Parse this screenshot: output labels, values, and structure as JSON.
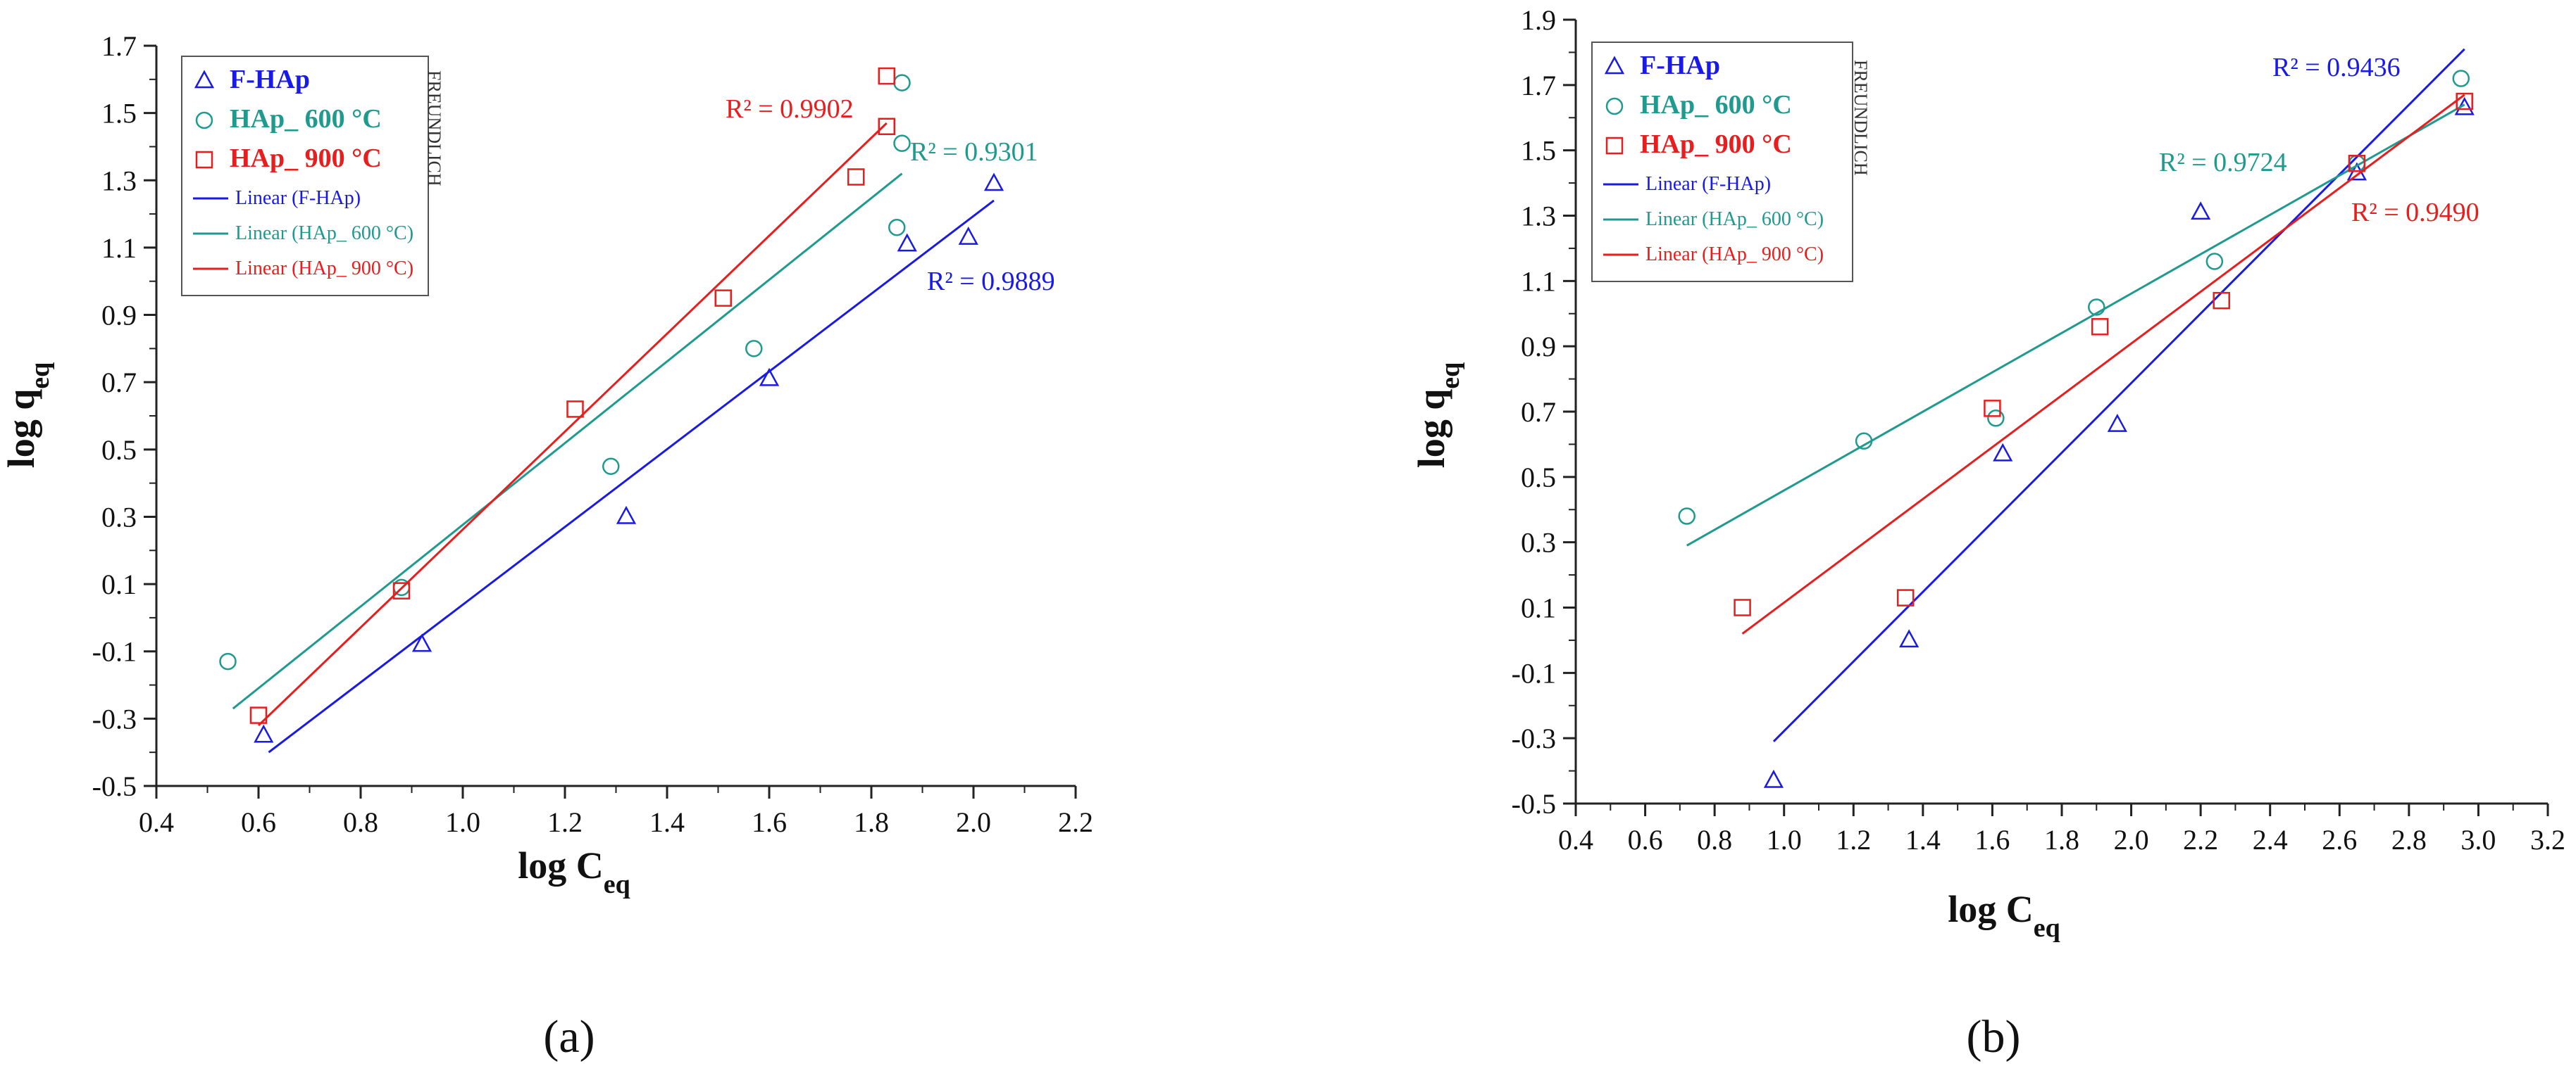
{
  "figure": {
    "panels": [
      "(a)",
      "(b)"
    ],
    "side_note": "FREUNDLICH",
    "colors": {
      "F-HAp": "#1a1ae6",
      "HAp_600": "#1f9a8f",
      "HAp_900": "#e61e1e"
    }
  },
  "chart_data": [
    {
      "panel": "(a)",
      "type": "scatter",
      "title": "",
      "xlabel": "log C",
      "xlabel_sub": "eq",
      "ylabel": "log q",
      "ylabel_sub": "eq",
      "xlim": [
        0.4,
        2.2
      ],
      "ylim": [
        -0.5,
        1.7
      ],
      "xticks": [
        "0.4",
        "0.6",
        "0.8",
        "1.0",
        "1.2",
        "1.4",
        "1.6",
        "1.8",
        "2.0",
        "2.2"
      ],
      "yticks": [
        "-0.5",
        "-0.3",
        "-0.1",
        "0.1",
        "0.3",
        "0.5",
        "0.7",
        "0.9",
        "1.1",
        "1.3",
        "1.5",
        "1.7"
      ],
      "legend": {
        "position": "top-left",
        "marker_entries": [
          "F-HAp",
          "HAp_ 600 °C",
          "HAp_ 900 °C"
        ],
        "line_entries": [
          "Linear (F-HAp)",
          "Linear (HAp_ 600 °C)",
          "Linear (HAp_ 900 °C)"
        ]
      },
      "series": [
        {
          "name": "F-HAp",
          "marker": "triangle",
          "color": "#1a1ae6",
          "x": [
            0.61,
            0.92,
            1.32,
            1.6,
            1.87,
            1.99,
            2.04
          ],
          "y": [
            -0.35,
            -0.08,
            0.3,
            0.71,
            1.11,
            1.13,
            1.29
          ],
          "fit": {
            "x": [
              0.62,
              2.04
            ],
            "y": [
              -0.4,
              1.24
            ]
          },
          "r2": "R² = 0.9889"
        },
        {
          "name": "HAp_ 600 °C",
          "marker": "circle",
          "color": "#1f9a8f",
          "x": [
            0.54,
            0.88,
            1.29,
            1.57,
            1.85,
            1.86,
            1.86
          ],
          "y": [
            -0.13,
            0.09,
            0.45,
            0.8,
            1.16,
            1.41,
            1.59
          ],
          "fit": {
            "x": [
              0.55,
              1.86
            ],
            "y": [
              -0.27,
              1.32
            ]
          },
          "r2": "R² = 0.9301"
        },
        {
          "name": "HAp_ 900 °C",
          "marker": "square",
          "color": "#e61e1e",
          "x": [
            0.6,
            0.88,
            1.22,
            1.51,
            1.77,
            1.83,
            1.83
          ],
          "y": [
            -0.29,
            0.08,
            0.62,
            0.95,
            1.31,
            1.46,
            1.61
          ],
          "fit": {
            "x": [
              0.6,
              1.83
            ],
            "y": [
              -0.32,
              1.47
            ]
          },
          "r2": "R² = 0.9902"
        }
      ]
    },
    {
      "panel": "(b)",
      "type": "scatter",
      "title": "",
      "xlabel": "log C",
      "xlabel_sub": "eq",
      "ylabel": "log q",
      "ylabel_sub": "eq",
      "xlim": [
        0.4,
        3.2
      ],
      "ylim": [
        -0.5,
        1.9
      ],
      "xticks": [
        "0.4",
        "0.6",
        "0.8",
        "1.0",
        "1.2",
        "1.4",
        "1.6",
        "1.8",
        "2.0",
        "2.2",
        "2.4",
        "2.6",
        "2.8",
        "3.0",
        "3.2"
      ],
      "yticks": [
        "-0.5",
        "-0.3",
        "-0.1",
        "0.1",
        "0.3",
        "0.5",
        "0.7",
        "0.9",
        "1.1",
        "1.3",
        "1.5",
        "1.7",
        "1.9"
      ],
      "legend": {
        "position": "top-left",
        "marker_entries": [
          "F-HAp",
          "HAp_ 600 °C",
          "HAp_ 900 °C"
        ],
        "line_entries": [
          "Linear (F-HAp)",
          "Linear (HAp_ 600 °C)",
          "Linear (HAp_ 900 °C)"
        ]
      },
      "series": [
        {
          "name": "F-HAp",
          "marker": "triangle",
          "color": "#1a1ae6",
          "x": [
            0.97,
            1.36,
            1.63,
            1.96,
            2.2,
            2.65,
            2.96
          ],
          "y": [
            -0.43,
            0.0,
            0.57,
            0.66,
            1.31,
            1.43,
            1.63
          ],
          "fit": {
            "x": [
              0.97,
              2.96
            ],
            "y": [
              -0.31,
              1.81
            ]
          },
          "r2": "R² = 0.9436"
        },
        {
          "name": "HAp_ 600 °C",
          "marker": "circle",
          "color": "#1f9a8f",
          "x": [
            0.72,
            1.23,
            1.61,
            1.9,
            2.24,
            2.65,
            2.95
          ],
          "y": [
            0.38,
            0.61,
            0.68,
            1.02,
            1.16,
            1.46,
            1.72
          ],
          "fit": {
            "x": [
              0.72,
              2.96
            ],
            "y": [
              0.29,
              1.64
            ]
          },
          "r2": "R² = 0.9724"
        },
        {
          "name": "HAp_ 900 °C",
          "marker": "square",
          "color": "#e61e1e",
          "x": [
            0.88,
            1.35,
            1.6,
            1.91,
            2.26,
            2.65,
            2.96
          ],
          "y": [
            0.1,
            0.13,
            0.71,
            0.96,
            1.04,
            1.46,
            1.65
          ],
          "fit": {
            "x": [
              0.88,
              2.96
            ],
            "y": [
              0.02,
              1.67
            ]
          },
          "r2": "R² = 0.9490"
        }
      ]
    }
  ]
}
